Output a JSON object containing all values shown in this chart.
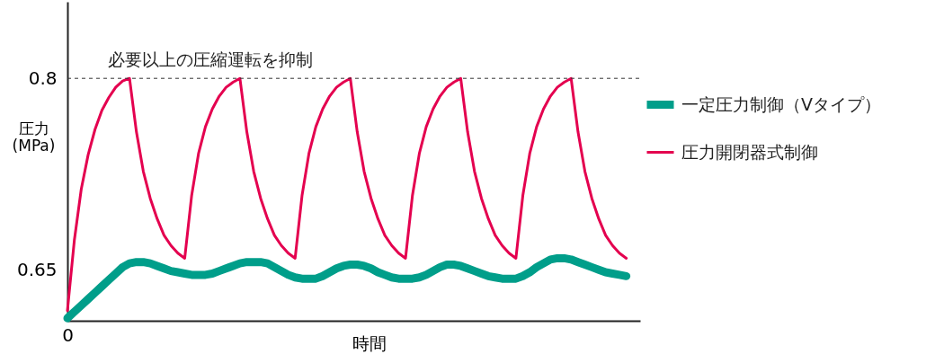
{
  "chart_data": {
    "type": "line",
    "ylabel": "圧力\n(MPa)",
    "xlabel": "時間",
    "categories": [
      "0",
      null,
      null,
      null,
      null,
      null,
      null,
      null,
      null,
      null,
      null,
      null,
      null,
      null,
      null,
      null,
      null,
      null,
      null,
      null,
      null,
      null,
      null,
      null,
      null,
      null,
      null,
      null,
      null,
      null,
      null,
      null,
      null,
      null,
      null,
      null,
      null,
      null,
      null,
      null,
      null,
      null,
      null,
      null,
      null,
      null,
      null,
      null,
      null,
      null,
      null,
      null,
      null,
      null,
      null,
      null,
      null,
      null,
      null,
      null,
      null,
      null,
      null,
      null,
      null,
      null,
      null,
      null,
      null,
      null,
      null,
      null,
      null,
      null,
      null,
      null,
      null,
      null,
      null,
      null,
      null,
      null,
      null,
      null
    ],
    "ylim": [
      0.61,
      0.86
    ],
    "yticks": [
      0.65,
      0.8
    ],
    "series": [
      {
        "name": "一定圧力制御（Vタイプ）",
        "color": "#009e8a",
        "values": [
          0.612,
          0.617,
          0.622,
          0.627,
          0.632,
          0.637,
          0.642,
          0.647,
          0.652,
          0.655,
          0.656,
          0.656,
          0.655,
          0.653,
          0.651,
          0.649,
          0.648,
          0.647,
          0.646,
          0.646,
          0.646,
          0.647,
          0.649,
          0.651,
          0.653,
          0.655,
          0.656,
          0.656,
          0.656,
          0.655,
          0.652,
          0.649,
          0.646,
          0.644,
          0.643,
          0.643,
          0.643,
          0.645,
          0.648,
          0.651,
          0.653,
          0.654,
          0.654,
          0.653,
          0.651,
          0.648,
          0.646,
          0.644,
          0.643,
          0.643,
          0.643,
          0.644,
          0.646,
          0.649,
          0.652,
          0.654,
          0.654,
          0.653,
          0.651,
          0.649,
          0.647,
          0.645,
          0.644,
          0.643,
          0.643,
          0.643,
          0.645,
          0.648,
          0.652,
          0.655,
          0.658,
          0.659,
          0.659,
          0.658,
          0.656,
          0.654,
          0.652,
          0.65,
          0.648,
          0.647,
          0.646,
          0.645,
          null,
          null
        ]
      },
      {
        "name": "圧力開閉器式制御",
        "color": "#e4004f",
        "values": [
          0.618,
          0.673,
          0.713,
          0.74,
          0.76,
          0.775,
          0.785,
          0.793,
          0.798,
          0.8,
          0.758,
          0.727,
          0.706,
          0.69,
          0.677,
          0.669,
          0.663,
          0.659,
          0.708,
          0.741,
          0.762,
          0.776,
          0.786,
          0.793,
          0.797,
          0.8,
          0.758,
          0.727,
          0.706,
          0.69,
          0.677,
          0.669,
          0.663,
          0.659,
          0.708,
          0.741,
          0.762,
          0.776,
          0.786,
          0.793,
          0.797,
          0.8,
          0.758,
          0.727,
          0.706,
          0.69,
          0.677,
          0.669,
          0.663,
          0.659,
          0.708,
          0.741,
          0.762,
          0.776,
          0.786,
          0.793,
          0.797,
          0.8,
          0.758,
          0.727,
          0.706,
          0.69,
          0.677,
          0.669,
          0.663,
          0.659,
          0.708,
          0.741,
          0.762,
          0.776,
          0.786,
          0.793,
          0.797,
          0.8,
          0.758,
          0.727,
          0.706,
          0.69,
          0.677,
          0.669,
          0.663,
          0.659,
          null,
          null
        ]
      }
    ],
    "ref_lines": [
      {
        "axis": "y",
        "value": 0.8,
        "label": "必要以上の圧縮運転を抑制",
        "color": "#333333",
        "line_style": "dashed"
      }
    ],
    "legend": "right",
    "grid": false,
    "marker": "none",
    "line_style": "solid"
  }
}
